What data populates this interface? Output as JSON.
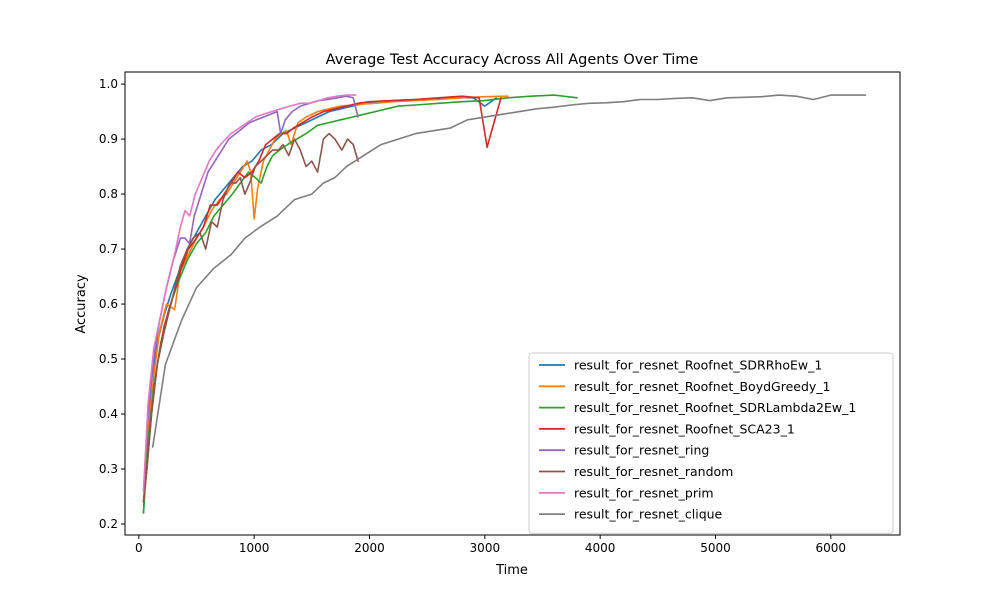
{
  "chart_data": {
    "type": "line",
    "title": "Average Test Accuracy Across All Agents Over Time",
    "xlabel": "Time",
    "ylabel": "Accuracy",
    "xlim": [
      -120,
      6600
    ],
    "ylim": [
      0.18,
      1.022
    ],
    "xticks": [
      0,
      1000,
      2000,
      3000,
      4000,
      5000,
      6000
    ],
    "yticks": [
      0.2,
      0.3,
      0.4,
      0.5,
      0.6,
      0.7,
      0.8,
      0.9,
      1.0
    ],
    "xtick_labels": [
      "0",
      "1000",
      "2000",
      "3000",
      "4000",
      "5000",
      "6000"
    ],
    "ytick_labels": [
      "0.2",
      "0.3",
      "0.4",
      "0.5",
      "0.6",
      "0.7",
      "0.8",
      "0.9",
      "1.0"
    ],
    "grid": false,
    "legend_position": "lower-right",
    "series": [
      {
        "name": "result_for_resnet_Roofnet_SDRRhoEw_1",
        "color": "#1f77b4",
        "points": [
          [
            40,
            0.22
          ],
          [
            70,
            0.36
          ],
          [
            110,
            0.46
          ],
          [
            160,
            0.53
          ],
          [
            220,
            0.58
          ],
          [
            280,
            0.62
          ],
          [
            350,
            0.66
          ],
          [
            420,
            0.7
          ],
          [
            500,
            0.73
          ],
          [
            580,
            0.76
          ],
          [
            660,
            0.79
          ],
          [
            740,
            0.81
          ],
          [
            820,
            0.83
          ],
          [
            900,
            0.85
          ],
          [
            980,
            0.86
          ],
          [
            1060,
            0.88
          ],
          [
            1150,
            0.89
          ],
          [
            1250,
            0.91
          ],
          [
            1350,
            0.92
          ],
          [
            1450,
            0.93
          ],
          [
            1550,
            0.94
          ],
          [
            1650,
            0.95
          ],
          [
            1750,
            0.955
          ],
          [
            1850,
            0.96
          ],
          [
            1950,
            0.965
          ],
          [
            2050,
            0.968
          ],
          [
            2200,
            0.97
          ],
          [
            2400,
            0.972
          ],
          [
            2600,
            0.974
          ],
          [
            2800,
            0.975
          ],
          [
            2900,
            0.975
          ],
          [
            3000,
            0.96
          ],
          [
            3100,
            0.975
          ]
        ]
      },
      {
        "name": "result_for_resnet_Roofnet_BoydGreedy_1",
        "color": "#ff7f0e",
        "points": [
          [
            40,
            0.24
          ],
          [
            80,
            0.37
          ],
          [
            130,
            0.47
          ],
          [
            180,
            0.55
          ],
          [
            240,
            0.6
          ],
          [
            310,
            0.59
          ],
          [
            360,
            0.66
          ],
          [
            430,
            0.69
          ],
          [
            500,
            0.72
          ],
          [
            560,
            0.74
          ],
          [
            630,
            0.77
          ],
          [
            700,
            0.79
          ],
          [
            760,
            0.8
          ],
          [
            820,
            0.82
          ],
          [
            880,
            0.84
          ],
          [
            940,
            0.86
          ],
          [
            970,
            0.84
          ],
          [
            1000,
            0.755
          ],
          [
            1030,
            0.81
          ],
          [
            1080,
            0.86
          ],
          [
            1130,
            0.88
          ],
          [
            1180,
            0.9
          ],
          [
            1230,
            0.91
          ],
          [
            1280,
            0.915
          ],
          [
            1320,
            0.89
          ],
          [
            1380,
            0.93
          ],
          [
            1450,
            0.94
          ],
          [
            1550,
            0.95
          ],
          [
            1650,
            0.955
          ],
          [
            1750,
            0.96
          ],
          [
            1850,
            0.962
          ],
          [
            1950,
            0.964
          ],
          [
            2050,
            0.965
          ],
          [
            2200,
            0.968
          ],
          [
            2400,
            0.97
          ],
          [
            2600,
            0.972
          ],
          [
            2800,
            0.975
          ],
          [
            3000,
            0.977
          ],
          [
            3200,
            0.978
          ]
        ]
      },
      {
        "name": "result_for_resnet_Roofnet_SDRLambda2Ew_1",
        "color": "#2ca02c",
        "points": [
          [
            40,
            0.22
          ],
          [
            80,
            0.35
          ],
          [
            130,
            0.45
          ],
          [
            190,
            0.53
          ],
          [
            260,
            0.59
          ],
          [
            340,
            0.64
          ],
          [
            420,
            0.68
          ],
          [
            500,
            0.71
          ],
          [
            580,
            0.73
          ],
          [
            650,
            0.76
          ],
          [
            730,
            0.78
          ],
          [
            810,
            0.8
          ],
          [
            880,
            0.82
          ],
          [
            950,
            0.84
          ],
          [
            1010,
            0.83
          ],
          [
            1060,
            0.82
          ],
          [
            1110,
            0.85
          ],
          [
            1160,
            0.87
          ],
          [
            1220,
            0.88
          ],
          [
            1290,
            0.89
          ],
          [
            1370,
            0.9
          ],
          [
            1450,
            0.91
          ],
          [
            1550,
            0.925
          ],
          [
            1650,
            0.93
          ],
          [
            1750,
            0.935
          ],
          [
            1850,
            0.94
          ],
          [
            1950,
            0.945
          ],
          [
            2050,
            0.95
          ],
          [
            2150,
            0.955
          ],
          [
            2250,
            0.96
          ],
          [
            2400,
            0.962
          ],
          [
            2600,
            0.965
          ],
          [
            2800,
            0.968
          ],
          [
            3000,
            0.97
          ],
          [
            3200,
            0.975
          ],
          [
            3400,
            0.978
          ],
          [
            3600,
            0.98
          ],
          [
            3800,
            0.975
          ]
        ]
      },
      {
        "name": "result_for_resnet_Roofnet_SCA23_1",
        "color": "#d62728",
        "points": [
          [
            40,
            0.24
          ],
          [
            70,
            0.3
          ],
          [
            110,
            0.4
          ],
          [
            160,
            0.49
          ],
          [
            220,
            0.56
          ],
          [
            290,
            0.61
          ],
          [
            360,
            0.66
          ],
          [
            430,
            0.7
          ],
          [
            500,
            0.72
          ],
          [
            560,
            0.74
          ],
          [
            620,
            0.78
          ],
          [
            680,
            0.78
          ],
          [
            740,
            0.8
          ],
          [
            800,
            0.82
          ],
          [
            860,
            0.84
          ],
          [
            920,
            0.83
          ],
          [
            980,
            0.84
          ],
          [
            1040,
            0.86
          ],
          [
            1100,
            0.89
          ],
          [
            1160,
            0.9
          ],
          [
            1220,
            0.91
          ],
          [
            1280,
            0.91
          ],
          [
            1340,
            0.92
          ],
          [
            1420,
            0.93
          ],
          [
            1500,
            0.94
          ],
          [
            1600,
            0.95
          ],
          [
            1700,
            0.955
          ],
          [
            1800,
            0.96
          ],
          [
            1900,
            0.965
          ],
          [
            2000,
            0.968
          ],
          [
            2200,
            0.97
          ],
          [
            2400,
            0.972
          ],
          [
            2600,
            0.975
          ],
          [
            2800,
            0.978
          ],
          [
            2950,
            0.975
          ],
          [
            3020,
            0.885
          ],
          [
            3080,
            0.93
          ],
          [
            3140,
            0.975
          ]
        ]
      },
      {
        "name": "result_for_resnet_ring",
        "color": "#9467bd",
        "points": [
          [
            40,
            0.26
          ],
          [
            80,
            0.4
          ],
          [
            130,
            0.5
          ],
          [
            180,
            0.57
          ],
          [
            240,
            0.63
          ],
          [
            300,
            0.68
          ],
          [
            360,
            0.72
          ],
          [
            400,
            0.72
          ],
          [
            440,
            0.71
          ],
          [
            480,
            0.76
          ],
          [
            540,
            0.8
          ],
          [
            600,
            0.84
          ],
          [
            660,
            0.86
          ],
          [
            720,
            0.88
          ],
          [
            780,
            0.9
          ],
          [
            840,
            0.91
          ],
          [
            900,
            0.92
          ],
          [
            960,
            0.93
          ],
          [
            1020,
            0.935
          ],
          [
            1080,
            0.94
          ],
          [
            1140,
            0.945
          ],
          [
            1200,
            0.95
          ],
          [
            1230,
            0.91
          ],
          [
            1270,
            0.935
          ],
          [
            1330,
            0.95
          ],
          [
            1400,
            0.96
          ],
          [
            1480,
            0.965
          ],
          [
            1560,
            0.97
          ],
          [
            1640,
            0.972
          ],
          [
            1720,
            0.975
          ],
          [
            1800,
            0.978
          ],
          [
            1860,
            0.975
          ],
          [
            1900,
            0.94
          ]
        ]
      },
      {
        "name": "result_for_resnet_random",
        "color": "#8c564b",
        "points": [
          [
            40,
            0.24
          ],
          [
            70,
            0.3
          ],
          [
            110,
            0.4
          ],
          [
            160,
            0.49
          ],
          [
            220,
            0.55
          ],
          [
            290,
            0.61
          ],
          [
            360,
            0.67
          ],
          [
            420,
            0.7
          ],
          [
            470,
            0.72
          ],
          [
            530,
            0.73
          ],
          [
            580,
            0.7
          ],
          [
            630,
            0.75
          ],
          [
            680,
            0.74
          ],
          [
            730,
            0.79
          ],
          [
            790,
            0.82
          ],
          [
            840,
            0.82
          ],
          [
            880,
            0.83
          ],
          [
            920,
            0.8
          ],
          [
            960,
            0.82
          ],
          [
            1010,
            0.85
          ],
          [
            1060,
            0.86
          ],
          [
            1110,
            0.87
          ],
          [
            1160,
            0.88
          ],
          [
            1210,
            0.88
          ],
          [
            1250,
            0.89
          ],
          [
            1300,
            0.87
          ],
          [
            1350,
            0.9
          ],
          [
            1400,
            0.88
          ],
          [
            1450,
            0.85
          ],
          [
            1500,
            0.86
          ],
          [
            1550,
            0.84
          ],
          [
            1600,
            0.9
          ],
          [
            1650,
            0.91
          ],
          [
            1700,
            0.9
          ],
          [
            1760,
            0.88
          ],
          [
            1810,
            0.9
          ],
          [
            1860,
            0.89
          ],
          [
            1900,
            0.86
          ]
        ]
      },
      {
        "name": "result_for_resnet_prim",
        "color": "#e377c2",
        "points": [
          [
            40,
            0.26
          ],
          [
            80,
            0.42
          ],
          [
            130,
            0.52
          ],
          [
            190,
            0.58
          ],
          [
            250,
            0.64
          ],
          [
            310,
            0.69
          ],
          [
            360,
            0.74
          ],
          [
            400,
            0.77
          ],
          [
            440,
            0.76
          ],
          [
            490,
            0.8
          ],
          [
            550,
            0.83
          ],
          [
            610,
            0.86
          ],
          [
            670,
            0.88
          ],
          [
            730,
            0.895
          ],
          [
            800,
            0.91
          ],
          [
            870,
            0.92
          ],
          [
            940,
            0.93
          ],
          [
            1010,
            0.94
          ],
          [
            1080,
            0.945
          ],
          [
            1150,
            0.95
          ],
          [
            1230,
            0.955
          ],
          [
            1310,
            0.96
          ],
          [
            1400,
            0.965
          ],
          [
            1480,
            0.965
          ],
          [
            1560,
            0.97
          ],
          [
            1640,
            0.975
          ],
          [
            1720,
            0.978
          ],
          [
            1800,
            0.98
          ],
          [
            1880,
            0.98
          ]
        ]
      },
      {
        "name": "result_for_resnet_clique",
        "color": "#7f7f7f",
        "points": [
          [
            120,
            0.34
          ],
          [
            230,
            0.49
          ],
          [
            370,
            0.57
          ],
          [
            500,
            0.63
          ],
          [
            650,
            0.665
          ],
          [
            800,
            0.69
          ],
          [
            920,
            0.72
          ],
          [
            1050,
            0.74
          ],
          [
            1200,
            0.76
          ],
          [
            1350,
            0.79
          ],
          [
            1500,
            0.8
          ],
          [
            1600,
            0.82
          ],
          [
            1700,
            0.83
          ],
          [
            1800,
            0.85
          ],
          [
            1950,
            0.87
          ],
          [
            2100,
            0.89
          ],
          [
            2250,
            0.9
          ],
          [
            2400,
            0.91
          ],
          [
            2550,
            0.915
          ],
          [
            2700,
            0.92
          ],
          [
            2850,
            0.935
          ],
          [
            3000,
            0.94
          ],
          [
            3150,
            0.945
          ],
          [
            3300,
            0.95
          ],
          [
            3450,
            0.955
          ],
          [
            3600,
            0.958
          ],
          [
            3750,
            0.962
          ],
          [
            3900,
            0.965
          ],
          [
            4050,
            0.966
          ],
          [
            4200,
            0.968
          ],
          [
            4350,
            0.972
          ],
          [
            4500,
            0.972
          ],
          [
            4650,
            0.974
          ],
          [
            4800,
            0.975
          ],
          [
            4950,
            0.97
          ],
          [
            5100,
            0.975
          ],
          [
            5250,
            0.976
          ],
          [
            5400,
            0.977
          ],
          [
            5550,
            0.98
          ],
          [
            5700,
            0.978
          ],
          [
            5850,
            0.972
          ],
          [
            6000,
            0.98
          ],
          [
            6150,
            0.98
          ],
          [
            6300,
            0.98
          ]
        ]
      }
    ]
  }
}
